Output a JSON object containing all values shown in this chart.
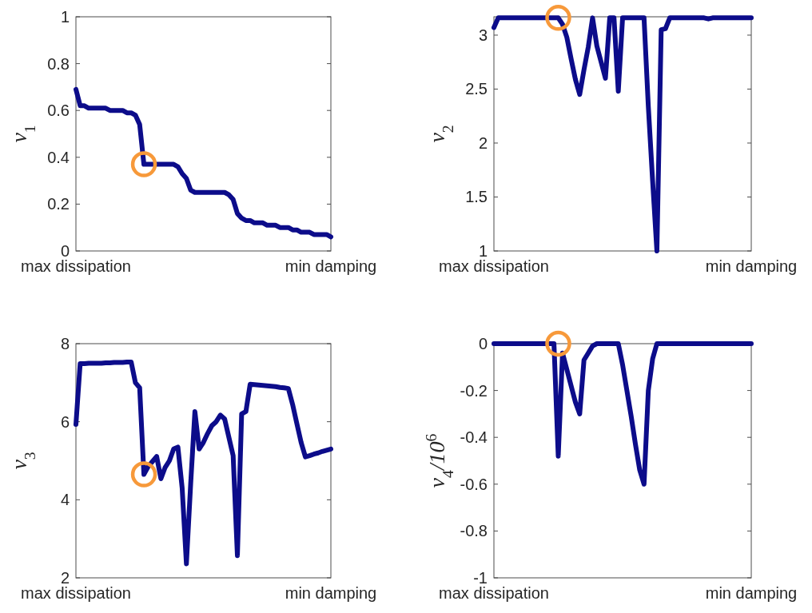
{
  "chart_data": [
    {
      "type": "line",
      "ylabel": "v$_{1}$",
      "categories": [
        "max dissipation",
        null,
        null,
        null,
        null,
        null,
        null,
        null,
        null,
        null,
        null,
        null,
        null,
        null,
        null,
        null,
        null,
        null,
        null,
        null,
        null,
        null,
        null,
        null,
        null,
        null,
        null,
        null,
        null,
        null,
        null,
        null,
        null,
        null,
        null,
        null,
        null,
        null,
        null,
        null,
        null,
        null,
        null,
        null,
        null,
        null,
        null,
        null,
        null,
        null,
        null,
        null,
        null,
        null,
        null,
        null,
        null,
        null,
        null,
        null,
        "min damping"
      ],
      "ylim": [
        0,
        1
      ],
      "yticks": [
        0,
        {
          "value": 0.2,
          "label": "0.2"
        },
        {
          "value": 0.4,
          "label": "0.4"
        },
        {
          "value": 0.6,
          "label": "0.6"
        },
        {
          "value": 0.8,
          "label": "0.8"
        },
        1
      ],
      "series": [
        {
          "color": "#0c0c8a",
          "values": [
            0.69,
            0.62,
            0.62,
            0.61,
            0.61,
            0.61,
            0.61,
            0.61,
            0.6,
            0.6,
            0.6,
            0.6,
            0.59,
            0.59,
            0.58,
            0.54,
            0.37,
            0.37,
            0.37,
            0.37,
            0.37,
            0.37,
            0.37,
            0.37,
            0.36,
            0.33,
            0.31,
            0.26,
            0.25,
            0.25,
            0.25,
            0.25,
            0.25,
            0.25,
            0.25,
            0.25,
            0.24,
            0.22,
            0.16,
            0.14,
            0.13,
            0.13,
            0.12,
            0.12,
            0.12,
            0.11,
            0.11,
            0.11,
            0.1,
            0.1,
            0.1,
            0.09,
            0.09,
            0.08,
            0.08,
            0.08,
            0.07,
            0.07,
            0.07,
            0.07,
            0.06
          ]
        },
        {
          "type": "scatter",
          "color": "#f7993a",
          "marker": "circle",
          "values": [
            null,
            null,
            null,
            null,
            null,
            null,
            null,
            null,
            null,
            null,
            null,
            null,
            null,
            null,
            null,
            null,
            0.37,
            null,
            null,
            null,
            null,
            null,
            null,
            null,
            null,
            null,
            null,
            null,
            null,
            null,
            null,
            null,
            null,
            null,
            null,
            null,
            null,
            null,
            null,
            null,
            null,
            null,
            null,
            null,
            null,
            null,
            null,
            null,
            null,
            null,
            null,
            null,
            null,
            null,
            null,
            null,
            null,
            null,
            null,
            null,
            null
          ]
        }
      ]
    },
    {
      "type": "line",
      "ylabel": "v$_{2}$",
      "categories": [
        "max dissipation",
        null,
        null,
        null,
        null,
        null,
        null,
        null,
        null,
        null,
        null,
        null,
        null,
        null,
        null,
        null,
        null,
        null,
        null,
        null,
        null,
        null,
        null,
        null,
        null,
        null,
        null,
        null,
        null,
        null,
        null,
        null,
        null,
        null,
        null,
        null,
        null,
        null,
        null,
        null,
        null,
        null,
        null,
        null,
        null,
        null,
        null,
        null,
        null,
        null,
        null,
        null,
        null,
        null,
        null,
        null,
        null,
        null,
        null,
        null,
        "min damping"
      ],
      "ylim": [
        1,
        3.17
      ],
      "yticks": [
        1,
        1.5,
        2,
        2.5,
        3
      ],
      "series": [
        {
          "color": "#0c0c8a",
          "values": [
            3.07,
            3.16,
            3.16,
            3.16,
            3.16,
            3.16,
            3.16,
            3.16,
            3.16,
            3.16,
            3.16,
            3.16,
            3.16,
            3.16,
            3.16,
            3.16,
            3.1,
            2.98,
            2.78,
            2.59,
            2.45,
            2.68,
            2.89,
            3.16,
            2.9,
            2.75,
            2.6,
            3.16,
            3.16,
            2.48,
            3.16,
            3.16,
            3.16,
            3.16,
            3.16,
            3.16,
            2.34,
            1.65,
            1.0,
            3.05,
            3.06,
            3.16,
            3.16,
            3.16,
            3.16,
            3.16,
            3.16,
            3.16,
            3.16,
            3.16,
            3.15,
            3.16,
            3.16,
            3.16,
            3.16,
            3.16,
            3.16,
            3.16,
            3.16,
            3.16,
            3.16
          ]
        },
        {
          "type": "scatter",
          "color": "#f7993a",
          "marker": "circle",
          "values": [
            null,
            null,
            null,
            null,
            null,
            null,
            null,
            null,
            null,
            null,
            null,
            null,
            null,
            null,
            null,
            3.16,
            null,
            null,
            null,
            null,
            null,
            null,
            null,
            null,
            null,
            null,
            null,
            null,
            null,
            null,
            null,
            null,
            null,
            null,
            null,
            null,
            null,
            null,
            null,
            null,
            null,
            null,
            null,
            null,
            null,
            null,
            null,
            null,
            null,
            null,
            null,
            null,
            null,
            null,
            null,
            null,
            null,
            null,
            null,
            null,
            null
          ]
        }
      ]
    },
    {
      "type": "line",
      "ylabel": "v$_{3}$",
      "categories": [
        "max dissipation",
        null,
        null,
        null,
        null,
        null,
        null,
        null,
        null,
        null,
        null,
        null,
        null,
        null,
        null,
        null,
        null,
        null,
        null,
        null,
        null,
        null,
        null,
        null,
        null,
        null,
        null,
        null,
        null,
        null,
        null,
        null,
        null,
        null,
        null,
        null,
        null,
        null,
        null,
        null,
        null,
        null,
        null,
        null,
        null,
        null,
        null,
        null,
        null,
        null,
        null,
        null,
        null,
        null,
        null,
        null,
        null,
        null,
        null,
        null,
        "min damping"
      ],
      "ylim": [
        2,
        8
      ],
      "yticks": [
        2,
        4,
        6,
        8
      ],
      "series": [
        {
          "color": "#0c0c8a",
          "values": [
            5.93,
            7.49,
            7.49,
            7.5,
            7.5,
            7.5,
            7.5,
            7.51,
            7.51,
            7.52,
            7.52,
            7.52,
            7.53,
            7.53,
            7.0,
            6.87,
            4.65,
            4.85,
            4.98,
            5.11,
            4.54,
            4.83,
            5.0,
            5.3,
            5.35,
            4.3,
            2.36,
            4.4,
            6.26,
            5.3,
            5.47,
            5.7,
            5.9,
            6.0,
            6.17,
            6.07,
            5.6,
            5.13,
            2.57,
            6.2,
            6.26,
            6.96,
            6.95,
            6.94,
            6.93,
            6.92,
            6.91,
            6.9,
            6.88,
            6.87,
            6.85,
            6.44,
            5.95,
            5.47,
            5.1,
            5.13,
            5.17,
            5.2,
            5.24,
            5.27,
            5.3
          ]
        },
        {
          "type": "scatter",
          "color": "#f7993a",
          "marker": "circle",
          "values": [
            null,
            null,
            null,
            null,
            null,
            null,
            null,
            null,
            null,
            null,
            null,
            null,
            null,
            null,
            null,
            null,
            4.65,
            null,
            null,
            null,
            null,
            null,
            null,
            null,
            null,
            null,
            null,
            null,
            null,
            null,
            null,
            null,
            null,
            null,
            null,
            null,
            null,
            null,
            null,
            null,
            null,
            null,
            null,
            null,
            null,
            null,
            null,
            null,
            null,
            null,
            null,
            null,
            null,
            null,
            null,
            null,
            null,
            null,
            null,
            null,
            null
          ]
        }
      ]
    },
    {
      "type": "line",
      "ylabel": "v$_{4}$/10$^{6}$",
      "categories": [
        "max dissipation",
        null,
        null,
        null,
        null,
        null,
        null,
        null,
        null,
        null,
        null,
        null,
        null,
        null,
        null,
        null,
        null,
        null,
        null,
        null,
        null,
        null,
        null,
        null,
        null,
        null,
        null,
        null,
        null,
        null,
        null,
        null,
        null,
        null,
        null,
        null,
        null,
        null,
        null,
        null,
        null,
        null,
        null,
        null,
        null,
        null,
        null,
        null,
        null,
        null,
        null,
        null,
        null,
        null,
        null,
        null,
        null,
        null,
        null,
        null,
        "min damping"
      ],
      "ylim": [
        -1,
        0
      ],
      "yticks": [
        -1,
        -0.8,
        -0.6,
        -0.4,
        -0.2,
        0
      ],
      "series": [
        {
          "color": "#0c0c8a",
          "values": [
            0,
            0,
            0,
            0,
            0,
            0,
            0,
            0,
            0,
            0,
            0,
            0,
            0,
            0,
            0,
            -0.48,
            -0.04,
            -0.11,
            -0.18,
            -0.25,
            -0.3,
            -0.07,
            -0.04,
            -0.01,
            0,
            0,
            0,
            0,
            0,
            0,
            -0.09,
            -0.2,
            -0.31,
            -0.43,
            -0.54,
            -0.6,
            -0.2,
            -0.065,
            0,
            0,
            0,
            0,
            0,
            0,
            0,
            0,
            0,
            0,
            0,
            0,
            0,
            0,
            0,
            0,
            0,
            0,
            0,
            0,
            0,
            0,
            0
          ]
        },
        {
          "type": "scatter",
          "color": "#f7993a",
          "marker": "circle",
          "values": [
            null,
            null,
            null,
            null,
            null,
            null,
            null,
            null,
            null,
            null,
            null,
            null,
            null,
            null,
            null,
            0,
            null,
            null,
            null,
            null,
            null,
            null,
            null,
            null,
            null,
            null,
            null,
            null,
            null,
            null,
            null,
            null,
            null,
            null,
            null,
            null,
            null,
            null,
            null,
            null,
            null,
            null,
            null,
            null,
            null,
            null,
            null,
            null,
            null,
            null,
            null,
            null,
            null,
            null,
            null,
            null,
            null,
            null,
            null,
            null,
            null
          ]
        }
      ]
    }
  ]
}
